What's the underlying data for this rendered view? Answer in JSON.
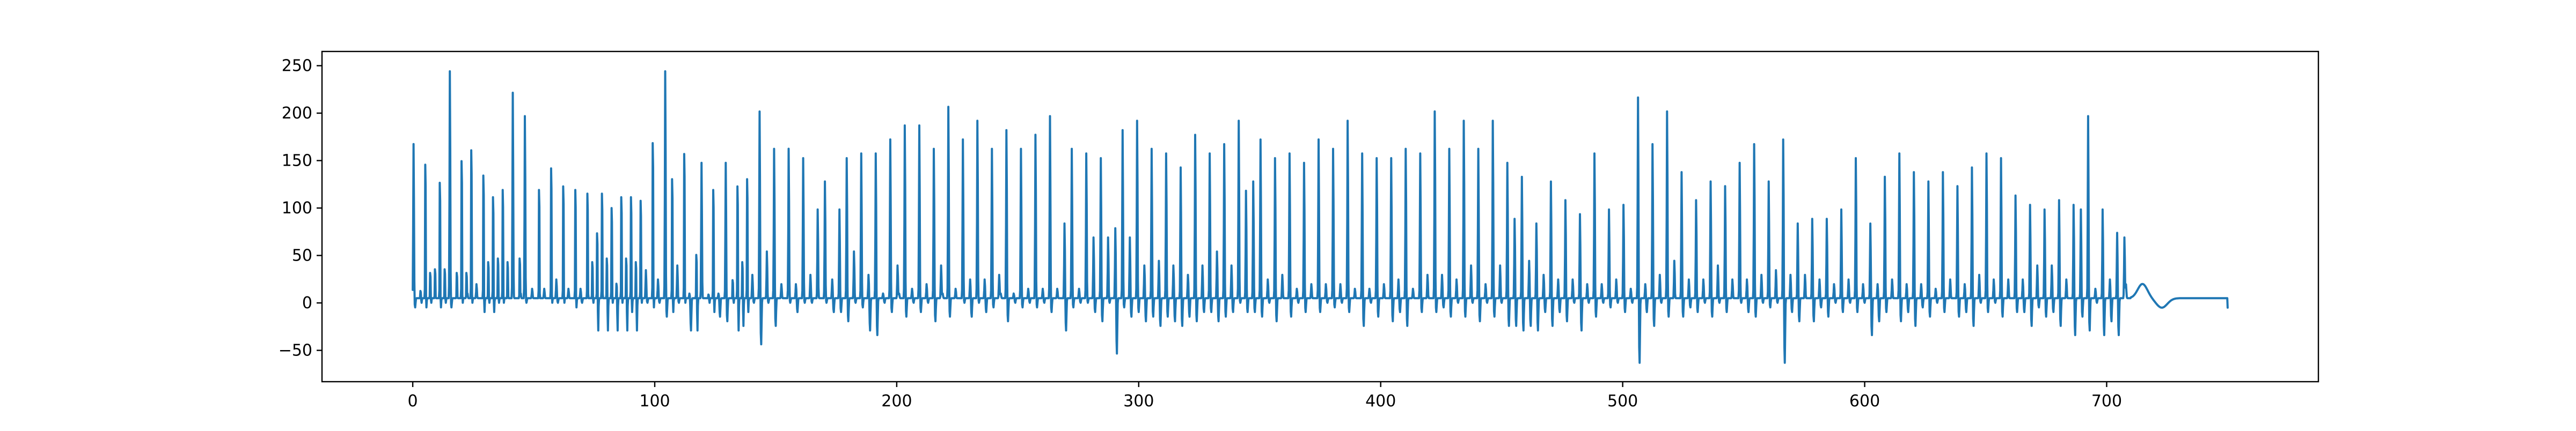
{
  "chart_data": {
    "type": "line",
    "title": "",
    "xlabel": "",
    "ylabel": "",
    "xlim": [
      -37.5,
      787.5
    ],
    "ylim": [
      -83,
      265
    ],
    "x_ticks": [
      0,
      100,
      200,
      300,
      400,
      500,
      600,
      700
    ],
    "y_ticks": [
      -50,
      0,
      50,
      100,
      150,
      200,
      250
    ],
    "grid": false,
    "legend": "none",
    "colors": {
      "series": "#1f77b4",
      "axis": "#000000",
      "background": "#ffffff"
    },
    "beats": [
      [
        0,
        170,
        -5
      ],
      [
        3,
        15,
        0
      ],
      [
        5,
        190,
        -5
      ],
      [
        7,
        40,
        0
      ],
      [
        9,
        45,
        5
      ],
      [
        11,
        165,
        -5
      ],
      [
        13,
        45,
        0
      ],
      [
        15,
        248,
        -5
      ],
      [
        18,
        40,
        5
      ],
      [
        20,
        195,
        0
      ],
      [
        22,
        40,
        10
      ],
      [
        24,
        210,
        0
      ],
      [
        26,
        20,
        5
      ],
      [
        29,
        175,
        -10
      ],
      [
        31,
        55,
        0
      ],
      [
        33,
        145,
        -10
      ],
      [
        35,
        60,
        0
      ],
      [
        37,
        155,
        0
      ],
      [
        39,
        55,
        5
      ],
      [
        41,
        225,
        5
      ],
      [
        44,
        60,
        10
      ],
      [
        46,
        200,
        0
      ],
      [
        49,
        15,
        5
      ],
      [
        52,
        155,
        5
      ],
      [
        54,
        15,
        5
      ],
      [
        57,
        185,
        0
      ],
      [
        59,
        25,
        0
      ],
      [
        62,
        160,
        0
      ],
      [
        64,
        15,
        5
      ],
      [
        67,
        155,
        -5
      ],
      [
        69,
        15,
        0
      ],
      [
        72,
        150,
        5
      ],
      [
        74,
        55,
        0
      ],
      [
        76,
        95,
        -30
      ],
      [
        78,
        150,
        5
      ],
      [
        80,
        60,
        -30
      ],
      [
        82,
        130,
        0
      ],
      [
        84,
        25,
        -30
      ],
      [
        86,
        145,
        0
      ],
      [
        88,
        60,
        -30
      ],
      [
        90,
        145,
        -10
      ],
      [
        92,
        55,
        -30
      ],
      [
        94,
        140,
        0
      ],
      [
        96,
        35,
        0
      ],
      [
        99,
        220,
        -5
      ],
      [
        101,
        25,
        0
      ],
      [
        104,
        248,
        -15
      ],
      [
        107,
        170,
        -10
      ],
      [
        109,
        40,
        0
      ],
      [
        112,
        205,
        0
      ],
      [
        114,
        10,
        -30
      ],
      [
        117,
        65,
        -30
      ],
      [
        119,
        150,
        5
      ],
      [
        122,
        10,
        0
      ],
      [
        124,
        155,
        -10
      ],
      [
        126,
        10,
        -15
      ],
      [
        129,
        150,
        -20
      ],
      [
        132,
        30,
        0
      ],
      [
        134,
        160,
        -30
      ],
      [
        136,
        55,
        -25
      ],
      [
        138,
        170,
        -10
      ],
      [
        140,
        30,
        0
      ],
      [
        143,
        205,
        -45
      ],
      [
        146,
        55,
        0
      ],
      [
        149,
        165,
        -25
      ],
      [
        152,
        20,
        5
      ],
      [
        155,
        165,
        0
      ],
      [
        158,
        20,
        -10
      ],
      [
        161,
        155,
        0
      ],
      [
        164,
        30,
        0
      ],
      [
        167,
        100,
        5
      ],
      [
        170,
        130,
        0
      ],
      [
        173,
        25,
        -10
      ],
      [
        176,
        100,
        -10
      ],
      [
        179,
        155,
        -20
      ],
      [
        182,
        55,
        0
      ],
      [
        185,
        160,
        -5
      ],
      [
        188,
        30,
        -30
      ],
      [
        191,
        160,
        -35
      ],
      [
        194,
        10,
        0
      ],
      [
        197,
        175,
        -10
      ],
      [
        200,
        40,
        10
      ],
      [
        203,
        190,
        -15
      ],
      [
        206,
        15,
        0
      ],
      [
        209,
        190,
        -10
      ],
      [
        212,
        20,
        0
      ],
      [
        215,
        165,
        -20
      ],
      [
        218,
        40,
        10
      ],
      [
        221,
        210,
        -15
      ],
      [
        224,
        15,
        5
      ],
      [
        227,
        175,
        0
      ],
      [
        230,
        25,
        -15
      ],
      [
        233,
        195,
        0
      ],
      [
        236,
        25,
        -10
      ],
      [
        239,
        165,
        -5
      ],
      [
        242,
        30,
        10
      ],
      [
        245,
        185,
        -20
      ],
      [
        248,
        10,
        0
      ],
      [
        251,
        165,
        -5
      ],
      [
        254,
        15,
        0
      ],
      [
        257,
        180,
        -5
      ],
      [
        260,
        15,
        0
      ],
      [
        263,
        200,
        -10
      ],
      [
        266,
        15,
        5
      ],
      [
        269,
        85,
        -30
      ],
      [
        272,
        165,
        -5
      ],
      [
        275,
        15,
        0
      ],
      [
        278,
        160,
        0
      ],
      [
        281,
        70,
        -10
      ],
      [
        284,
        155,
        -20
      ],
      [
        287,
        70,
        0
      ],
      [
        290,
        80,
        -55
      ],
      [
        293,
        185,
        -5
      ],
      [
        296,
        70,
        -15
      ],
      [
        299,
        195,
        -10
      ],
      [
        302,
        40,
        -20
      ],
      [
        305,
        165,
        -15
      ],
      [
        308,
        45,
        -25
      ],
      [
        311,
        160,
        -15
      ],
      [
        314,
        40,
        -20
      ],
      [
        317,
        145,
        -25
      ],
      [
        320,
        30,
        -15
      ],
      [
        323,
        180,
        -20
      ],
      [
        326,
        40,
        -10
      ],
      [
        329,
        160,
        -10
      ],
      [
        332,
        55,
        -20
      ],
      [
        335,
        170,
        -15
      ],
      [
        338,
        40,
        -10
      ],
      [
        341,
        195,
        0
      ],
      [
        344,
        120,
        -10
      ],
      [
        347,
        130,
        -10
      ],
      [
        350,
        175,
        -15
      ],
      [
        353,
        25,
        0
      ],
      [
        356,
        155,
        -20
      ],
      [
        359,
        30,
        5
      ],
      [
        362,
        160,
        -15
      ],
      [
        365,
        15,
        0
      ],
      [
        368,
        150,
        -10
      ],
      [
        371,
        20,
        5
      ],
      [
        374,
        175,
        -10
      ],
      [
        377,
        20,
        0
      ],
      [
        380,
        165,
        -5
      ],
      [
        383,
        20,
        0
      ],
      [
        386,
        195,
        -10
      ],
      [
        389,
        15,
        5
      ],
      [
        392,
        160,
        -25
      ],
      [
        395,
        15,
        0
      ],
      [
        398,
        155,
        -15
      ],
      [
        401,
        20,
        5
      ],
      [
        404,
        155,
        -20
      ],
      [
        407,
        25,
        -10
      ],
      [
        410,
        165,
        -25
      ],
      [
        413,
        15,
        5
      ],
      [
        416,
        160,
        -10
      ],
      [
        419,
        30,
        5
      ],
      [
        422,
        205,
        -10
      ],
      [
        425,
        30,
        -5
      ],
      [
        428,
        165,
        -15
      ],
      [
        431,
        25,
        0
      ],
      [
        434,
        195,
        -15
      ],
      [
        437,
        40,
        0
      ],
      [
        440,
        165,
        -20
      ],
      [
        443,
        20,
        0
      ],
      [
        446,
        195,
        -15
      ],
      [
        449,
        40,
        0
      ],
      [
        452,
        150,
        -25
      ],
      [
        455,
        90,
        -25
      ],
      [
        458,
        135,
        -30
      ],
      [
        461,
        45,
        -25
      ],
      [
        464,
        85,
        -30
      ],
      [
        467,
        30,
        -10
      ],
      [
        470,
        130,
        -25
      ],
      [
        473,
        25,
        -10
      ],
      [
        476,
        110,
        -20
      ],
      [
        479,
        25,
        0
      ],
      [
        482,
        95,
        -30
      ],
      [
        485,
        20,
        0
      ],
      [
        488,
        160,
        -15
      ],
      [
        491,
        20,
        0
      ],
      [
        494,
        100,
        -5
      ],
      [
        497,
        25,
        0
      ],
      [
        500,
        105,
        -10
      ],
      [
        503,
        15,
        0
      ],
      [
        506,
        220,
        -65
      ],
      [
        509,
        20,
        -10
      ],
      [
        512,
        170,
        -25
      ],
      [
        515,
        30,
        0
      ],
      [
        518,
        205,
        -15
      ],
      [
        521,
        45,
        5
      ],
      [
        524,
        140,
        -15
      ],
      [
        527,
        25,
        -5
      ],
      [
        530,
        110,
        -10
      ],
      [
        533,
        25,
        0
      ],
      [
        536,
        130,
        -15
      ],
      [
        539,
        40,
        0
      ],
      [
        542,
        125,
        -10
      ],
      [
        545,
        25,
        5
      ],
      [
        548,
        150,
        0
      ],
      [
        551,
        25,
        -10
      ],
      [
        554,
        170,
        -15
      ],
      [
        557,
        30,
        0
      ],
      [
        560,
        130,
        -5
      ],
      [
        563,
        35,
        0
      ],
      [
        566,
        175,
        -65
      ],
      [
        569,
        30,
        -10
      ],
      [
        572,
        85,
        -20
      ],
      [
        575,
        30,
        5
      ],
      [
        578,
        90,
        -20
      ],
      [
        581,
        25,
        -5
      ],
      [
        584,
        90,
        -15
      ],
      [
        587,
        20,
        0
      ],
      [
        590,
        100,
        -10
      ],
      [
        593,
        25,
        0
      ],
      [
        596,
        155,
        -10
      ],
      [
        599,
        20,
        0
      ],
      [
        602,
        85,
        -35
      ],
      [
        605,
        20,
        -20
      ],
      [
        608,
        135,
        -10
      ],
      [
        611,
        25,
        5
      ],
      [
        614,
        160,
        -20
      ],
      [
        617,
        20,
        -10
      ],
      [
        620,
        140,
        -25
      ],
      [
        623,
        20,
        -5
      ],
      [
        626,
        130,
        -15
      ],
      [
        629,
        15,
        0
      ],
      [
        632,
        140,
        -10
      ],
      [
        635,
        25,
        5
      ],
      [
        638,
        125,
        -15
      ],
      [
        641,
        20,
        -10
      ],
      [
        644,
        145,
        -25
      ],
      [
        647,
        30,
        0
      ],
      [
        650,
        160,
        -10
      ],
      [
        653,
        25,
        0
      ],
      [
        656,
        155,
        -15
      ],
      [
        659,
        25,
        5
      ],
      [
        662,
        115,
        -10
      ],
      [
        665,
        25,
        -10
      ],
      [
        668,
        105,
        -25
      ],
      [
        671,
        40,
        -5
      ],
      [
        674,
        100,
        -15
      ],
      [
        677,
        40,
        -10
      ],
      [
        680,
        110,
        -25
      ],
      [
        683,
        25,
        5
      ],
      [
        686,
        105,
        -35
      ],
      [
        689,
        100,
        -15
      ],
      [
        692,
        200,
        -30
      ],
      [
        695,
        15,
        0
      ],
      [
        698,
        100,
        -35
      ],
      [
        701,
        25,
        -20
      ],
      [
        704,
        75,
        -35
      ],
      [
        707,
        70,
        20
      ],
      [
        710,
        20,
        -5
      ]
    ],
    "x_max": 750
  }
}
